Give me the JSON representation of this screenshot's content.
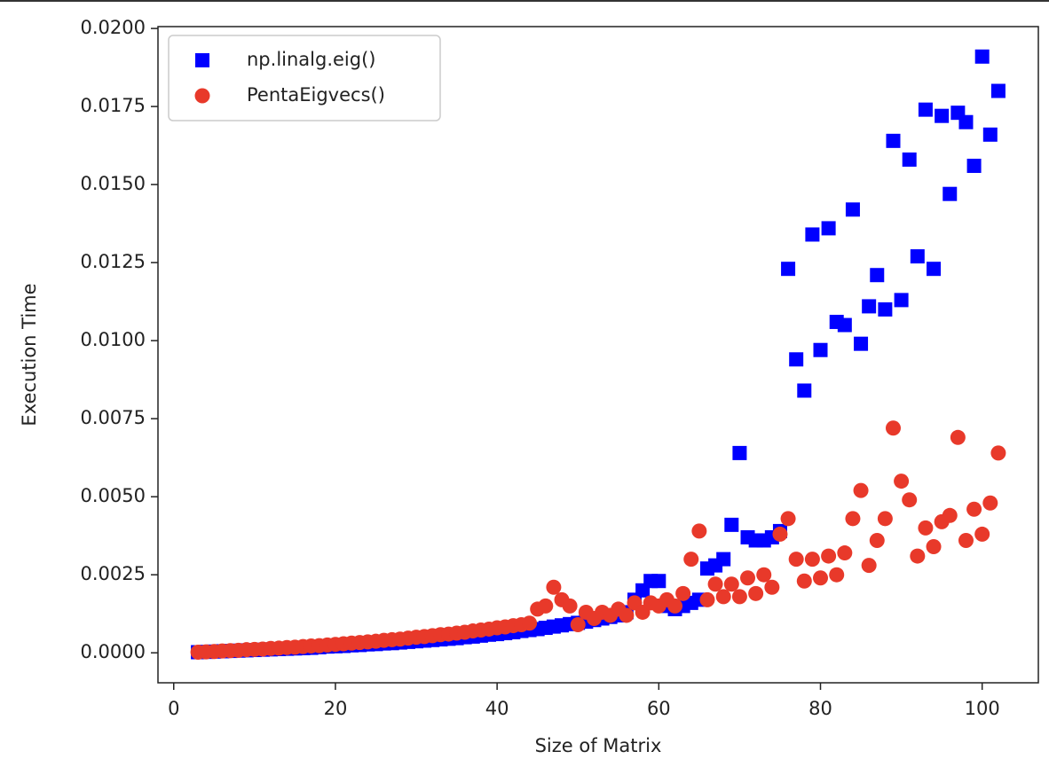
{
  "chart_data": {
    "type": "scatter",
    "xlabel": "Size of Matrix",
    "ylabel": "Execution Time",
    "x": [
      3,
      4,
      5,
      6,
      7,
      8,
      9,
      10,
      11,
      12,
      13,
      14,
      15,
      16,
      17,
      18,
      19,
      20,
      21,
      22,
      23,
      24,
      25,
      26,
      27,
      28,
      29,
      30,
      31,
      32,
      33,
      34,
      35,
      36,
      37,
      38,
      39,
      40,
      41,
      42,
      43,
      44,
      45,
      46,
      47,
      48,
      49,
      50,
      51,
      52,
      53,
      54,
      55,
      56,
      57,
      58,
      59,
      60,
      61,
      62,
      63,
      64,
      65,
      66,
      67,
      68,
      69,
      70,
      71,
      72,
      73,
      74,
      75,
      76,
      77,
      78,
      79,
      80,
      81,
      82,
      83,
      84,
      85,
      86,
      87,
      88,
      89,
      90,
      91,
      92,
      93,
      94,
      95,
      96,
      97,
      98,
      99,
      100,
      101,
      102
    ],
    "series": [
      {
        "name": "np.linalg.eig()",
        "color": "#0000ff",
        "marker": "square",
        "values": [
          2e-05,
          3e-05,
          4e-05,
          5e-05,
          6e-05,
          7e-05,
          8e-05,
          9e-05,
          0.0001,
          0.00011,
          0.00012,
          0.00013,
          0.00014,
          0.00015,
          0.00016,
          0.00018,
          0.0002,
          0.00021,
          0.00022,
          0.00024,
          0.00025,
          0.00027,
          0.00028,
          0.0003,
          0.00031,
          0.00033,
          0.00035,
          0.00037,
          0.00039,
          0.00041,
          0.00043,
          0.00045,
          0.00047,
          0.0005,
          0.00052,
          0.00055,
          0.00058,
          0.0006,
          0.00063,
          0.00066,
          0.0007,
          0.00073,
          0.00076,
          0.0008,
          0.00084,
          0.00088,
          0.00092,
          0.00096,
          0.001,
          0.00105,
          0.0011,
          0.00115,
          0.0012,
          0.0013,
          0.0017,
          0.002,
          0.0023,
          0.0023,
          0.0015,
          0.0014,
          0.0015,
          0.0016,
          0.0017,
          0.0027,
          0.0028,
          0.003,
          0.0041,
          0.0064,
          0.0037,
          0.0036,
          0.0036,
          0.0037,
          0.0039,
          0.0123,
          0.0094,
          0.0084,
          0.0134,
          0.0097,
          0.0136,
          0.0106,
          0.0105,
          0.0142,
          0.0099,
          0.0111,
          0.0121,
          0.011,
          0.0164,
          0.0113,
          0.0158,
          0.0127,
          0.0174,
          0.0123,
          0.0172,
          0.0147,
          0.0173,
          0.017,
          0.0156,
          0.0191,
          0.0166,
          0.018
        ]
      },
      {
        "name": "PentaEigvecs()",
        "color": "#e8392a",
        "marker": "circle",
        "values": [
          2e-05,
          3e-05,
          4e-05,
          6e-05,
          7e-05,
          8e-05,
          0.0001,
          0.00011,
          0.00012,
          0.00014,
          0.00015,
          0.00017,
          0.00018,
          0.0002,
          0.00022,
          0.00023,
          0.00025,
          0.00027,
          0.00029,
          0.00031,
          0.00033,
          0.00035,
          0.00037,
          0.0004,
          0.00042,
          0.00044,
          0.00047,
          0.0005,
          0.00052,
          0.00055,
          0.00058,
          0.0006,
          0.00063,
          0.00066,
          0.0007,
          0.00073,
          0.00076,
          0.0008,
          0.00083,
          0.00087,
          0.0009,
          0.00095,
          0.0014,
          0.0015,
          0.0021,
          0.0017,
          0.0015,
          0.0009,
          0.0013,
          0.0011,
          0.0013,
          0.0012,
          0.0014,
          0.0012,
          0.0016,
          0.0013,
          0.0016,
          0.0015,
          0.0017,
          0.0015,
          0.0019,
          0.003,
          0.0039,
          0.0017,
          0.0022,
          0.0018,
          0.0022,
          0.0018,
          0.0024,
          0.0019,
          0.0025,
          0.0021,
          0.0038,
          0.0043,
          0.003,
          0.0023,
          0.003,
          0.0024,
          0.0031,
          0.0025,
          0.0032,
          0.0043,
          0.0052,
          0.0028,
          0.0036,
          0.0043,
          0.0072,
          0.0055,
          0.0049,
          0.0031,
          0.004,
          0.0034,
          0.0042,
          0.0044,
          0.0069,
          0.0036,
          0.0046,
          0.0038,
          0.0048,
          0.0064
        ]
      }
    ],
    "xlim": [
      -1.95,
      106.95
    ],
    "ylim": [
      -0.00096,
      0.02006
    ],
    "xticks": [
      0,
      20,
      40,
      60,
      80,
      100
    ],
    "yticks": [
      {
        "value": 0,
        "label": "0.0000"
      },
      {
        "value": 0.0025,
        "label": "0.0025"
      },
      {
        "value": 0.005,
        "label": "0.0050"
      },
      {
        "value": 0.0075,
        "label": "0.0075"
      },
      {
        "value": 0.01,
        "label": "0.0100"
      },
      {
        "value": 0.0125,
        "label": "0.0125"
      },
      {
        "value": 0.015,
        "label": "0.0150"
      },
      {
        "value": 0.0175,
        "label": "0.0175"
      },
      {
        "value": 0.02,
        "label": "0.0200"
      }
    ],
    "legend": "upper left",
    "grid": false
  }
}
